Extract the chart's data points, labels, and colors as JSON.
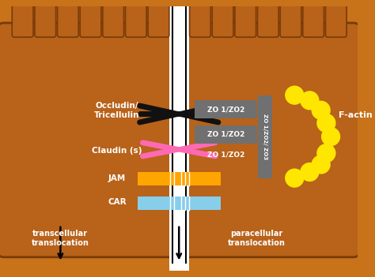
{
  "bg_color": "#C8731A",
  "brown_cell": "#B8621A",
  "brown_dark": "#8B4510",
  "white": "#FFFFFF",
  "fig_width": 4.74,
  "fig_height": 3.51,
  "colors": {
    "occludin": "#111111",
    "claudin": "#FF69B4",
    "jam": "#FFA500",
    "car": "#87CEEB",
    "zo_box": "#707070",
    "zo_text": "#FFFFFF",
    "label_text": "#FFFFFF",
    "yellow": "#FFE600",
    "arrow": "#111111",
    "cell_fill": "#B8621A",
    "cell_edge": "#7A3A08"
  },
  "labels": {
    "occludin": "Occludin/\nTricellulin",
    "claudin": "Claudin (s)",
    "jam": "JAM",
    "car": "CAR",
    "transcellular": "transcellular\ntranslocation",
    "paracellular": "paracellular\ntranslocation",
    "factin": "F-actin"
  },
  "zo_labels": [
    "ZO 1/ZO2",
    "ZO 1/ZO2",
    "ZO 1/ZO2"
  ],
  "zo3_label": "ZO 1/ZO2/ ZO3"
}
